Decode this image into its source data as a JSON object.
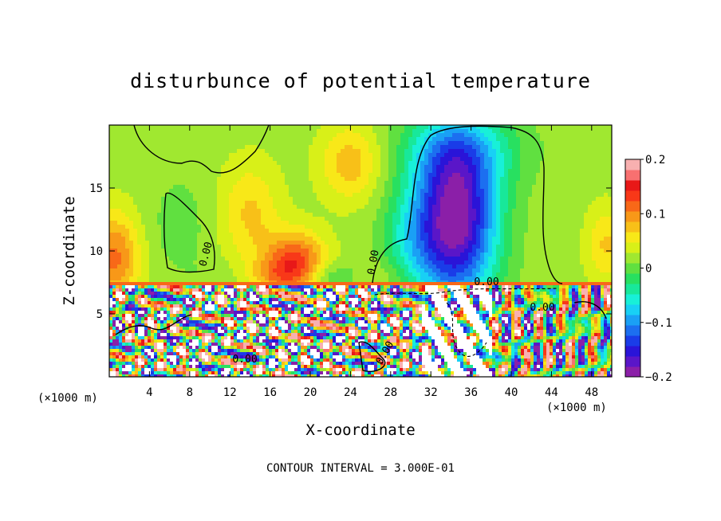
{
  "chart_data": {
    "type": "heatmap",
    "title": "disturbunce of potential temperature",
    "xlabel": "X-coordinate",
    "ylabel": "Z-coordinate",
    "x_unit_label": "(×1000 m)",
    "z_unit_label": "(×1000 m)",
    "xlim": [
      0,
      50
    ],
    "ylim": [
      0,
      20
    ],
    "x_ticks": [
      "4",
      "8",
      "12",
      "16",
      "20",
      "24",
      "28",
      "32",
      "36",
      "40",
      "44",
      "48"
    ],
    "x_tick_values": [
      4,
      8,
      12,
      16,
      20,
      24,
      28,
      32,
      36,
      40,
      44,
      48
    ],
    "y_ticks": [
      "5",
      "10",
      "15"
    ],
    "y_tick_values": [
      5,
      10,
      15
    ],
    "colorbar": {
      "range": [
        -0.2,
        0.2
      ],
      "tick_labels": [
        "0.2",
        "0.1",
        "0",
        "−0.1",
        "−0.2"
      ],
      "tick_values": [
        0.2,
        0.1,
        0,
        -0.1,
        -0.2
      ],
      "colors": [
        "#8b1fa8",
        "#5a16c8",
        "#2a14d8",
        "#1a3ce8",
        "#1c6ff0",
        "#1aa0f5",
        "#18d0f5",
        "#18f0d8",
        "#18e89a",
        "#28e060",
        "#60e040",
        "#a0e830",
        "#d8f018",
        "#f8e818",
        "#f8c018",
        "#f89818",
        "#f86818",
        "#f83818",
        "#e81818",
        "#f87070",
        "#f8b0b0"
      ]
    },
    "contour_labels": [
      "0.00",
      "0.00",
      "0.00",
      "0.00",
      "0.00",
      "0.00"
    ],
    "footer": "CONTOUR INTERVAL = 3.000E-01"
  }
}
